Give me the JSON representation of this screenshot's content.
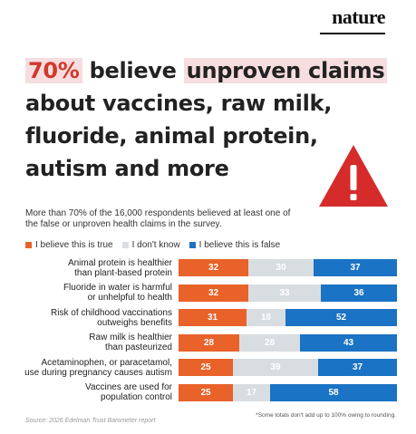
{
  "brand": "nature",
  "headline": {
    "hl_pct": "70%",
    "line1_mid": " believe ",
    "hl_claims": "unproven claims",
    "line2": "about vaccines, raw milk,",
    "line3": "fluoride, animal protein,",
    "line4": "autism and more"
  },
  "intro": "More than 70% of the 16,000 respondents believed at least one of the false or unproven health claims in the survey.",
  "legend": {
    "true": "I believe this is true",
    "dk": "I don't know",
    "false": "I believe this is false"
  },
  "colors": {
    "true": "#e8622a",
    "dk": "#d8dde1",
    "false": "#1a73c4",
    "highlight": "#f6dde0",
    "warning": "#d62b2b"
  },
  "warning_icon": "warning-triangle-icon",
  "chart_data": {
    "type": "bar",
    "orientation": "horizontal",
    "stacked": true,
    "categories": [
      [
        "Animal protein is healthier",
        "than plant-based protein"
      ],
      [
        "Fluoride in water is harmful",
        "or unhelpful to health"
      ],
      [
        "Risk of childhood vaccinations",
        "outweighs benefits"
      ],
      [
        "Raw milk is healthier",
        "than pasteurized"
      ],
      [
        "Acetaminophen, or paracetamol,",
        "use during pregnancy causes autism"
      ],
      [
        "Vaccines are used for",
        "population control"
      ]
    ],
    "series": [
      {
        "name": "I believe this is true",
        "values": [
          32,
          32,
          31,
          28,
          25,
          25
        ]
      },
      {
        "name": "I don't know",
        "values": [
          30,
          33,
          18,
          28,
          39,
          17
        ]
      },
      {
        "name": "I believe this is false",
        "values": [
          37,
          36,
          52,
          43,
          37,
          58
        ]
      }
    ],
    "unit": "%",
    "xlim": [
      0,
      100
    ]
  },
  "source": "Source: 2026 Edelman Trust Barometer report",
  "footnote": "*Some totals don't add up to 100% owing to rounding."
}
